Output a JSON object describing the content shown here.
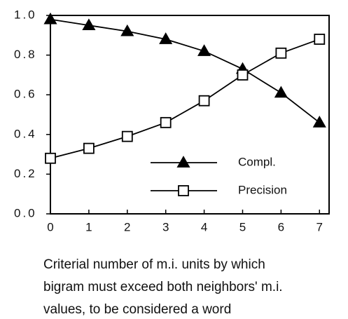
{
  "chart_data": {
    "type": "line",
    "x": [
      0,
      1,
      2,
      3,
      4,
      5,
      6,
      7
    ],
    "series": [
      {
        "name": "Compl.",
        "color": "#000000",
        "marker": "filled-triangle",
        "values": [
          0.98,
          0.95,
          0.92,
          0.88,
          0.82,
          0.73,
          0.61,
          0.46
        ]
      },
      {
        "name": "Precision",
        "color": "#000000",
        "marker": "open-square",
        "values": [
          0.28,
          0.33,
          0.39,
          0.46,
          0.57,
          0.7,
          0.81,
          0.88
        ]
      }
    ],
    "xlabel_lines": [
      "Criterial number of m.i. units by which",
      "bigram must exceed both neighbors' m.i.",
      "values, to be considered a word"
    ],
    "xlim": [
      0,
      7.25
    ],
    "xticks": [
      0,
      1,
      2,
      3,
      4,
      5,
      6,
      7
    ],
    "ylim": [
      0,
      1
    ],
    "yticks": [
      {
        "value": 0,
        "label": "0.0"
      },
      0.2,
      0.4,
      0.6,
      0.8,
      {
        "value": 1,
        "label": "1.0"
      }
    ],
    "grid": false,
    "legend": "lower right"
  }
}
